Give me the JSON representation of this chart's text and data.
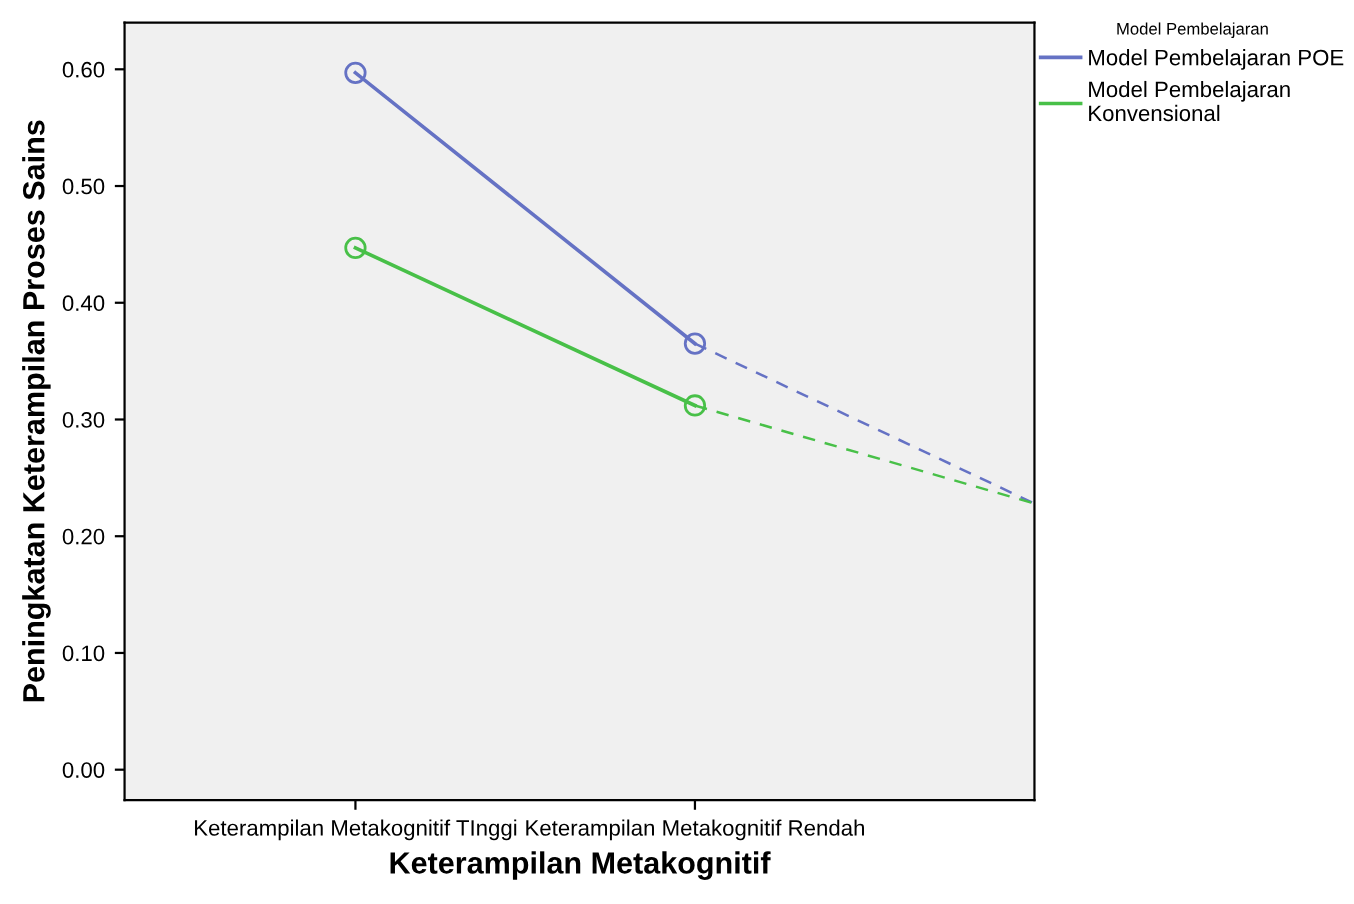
{
  "chart_data": {
    "type": "line",
    "xlabel": "Keterampilan Metakognitif",
    "ylabel": "Peningkatan Keterampilan Proses Sains",
    "legend_title": "Model Pembelajaran",
    "categories": [
      "Keterampilan Metakognitif TInggi",
      "Keterampilan Metakognitif Rendah",
      null
    ],
    "series": [
      {
        "name": "Model Pembelajaran POE",
        "color": "#6572c4",
        "values": [
          0.597,
          0.365,
          null
        ],
        "marker": "circle",
        "line_style": "solid"
      },
      {
        "name": "Model Pembelajaran\nKonvensional",
        "color": "#48c048",
        "values": [
          0.447,
          0.312,
          null
        ],
        "marker": "circle",
        "line_style": "solid"
      },
      {
        "color": "#6572c4",
        "values": [
          null,
          0.365,
          0.228
        ],
        "marker": "none",
        "line_style": "dashed"
      },
      {
        "color": "#48c048",
        "values": [
          null,
          0.312,
          0.228
        ],
        "marker": "none",
        "line_style": "dashed"
      }
    ],
    "ylim": [
      -0.026,
      0.64
    ],
    "yticks": [
      {
        "value": 0,
        "label": "0.00"
      },
      {
        "value": 0.1,
        "label": "0.10"
      },
      {
        "value": 0.2,
        "label": "0.20"
      },
      {
        "value": 0.3,
        "label": "0.30"
      },
      {
        "value": 0.4,
        "label": "0.40"
      },
      {
        "value": 0.5,
        "label": "0.50"
      },
      {
        "value": 0.6,
        "label": "0.60"
      }
    ],
    "grid": false,
    "legend": "top right"
  }
}
